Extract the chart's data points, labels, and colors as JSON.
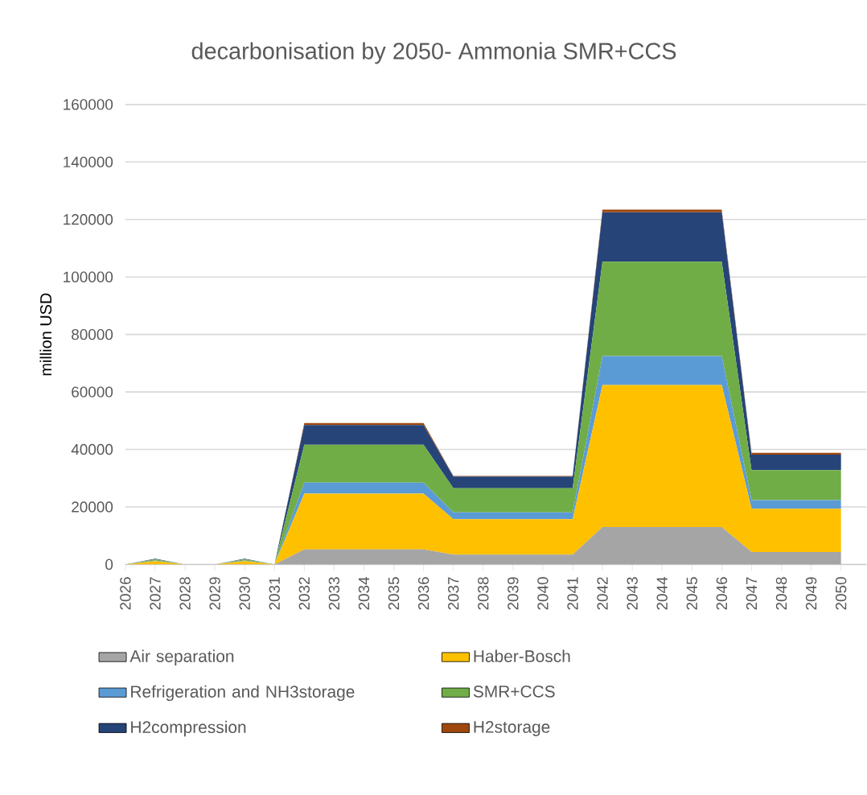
{
  "chart_data": {
    "type": "area",
    "title": "decarbonisation by 2050- Ammonia SMR+CCS",
    "ylabel": "million USD",
    "categories": [
      "2026",
      "2027",
      "2028",
      "2029",
      "2030",
      "2031",
      "2032",
      "2033",
      "2034",
      "2035",
      "2036",
      "2037",
      "2038",
      "2039",
      "2040",
      "2041",
      "2042",
      "2043",
      "2044",
      "2045",
      "2046",
      "2047",
      "2048",
      "2049",
      "2050"
    ],
    "stacked": true,
    "grid": "y",
    "legend": "bottom",
    "ylim": [
      0,
      160000
    ],
    "yticks": [
      0,
      20000,
      40000,
      60000,
      80000,
      100000,
      120000,
      140000,
      160000
    ],
    "series": [
      {
        "name": "Air separation",
        "color": "#a5a5a5",
        "values": [
          0,
          0,
          0,
          0,
          0,
          0,
          5200,
          5200,
          5200,
          5200,
          5200,
          3400,
          3400,
          3400,
          3400,
          3400,
          13000,
          13000,
          13000,
          13000,
          13000,
          4300,
          4300,
          4300,
          4300
        ]
      },
      {
        "name": "Haber-Bosch",
        "color": "#ffc000",
        "values": [
          0,
          1200,
          0,
          0,
          1200,
          0,
          19400,
          19400,
          19400,
          19400,
          19400,
          12300,
          12300,
          12300,
          12300,
          12300,
          49400,
          49400,
          49400,
          49400,
          49400,
          15100,
          15100,
          15100,
          15100
        ]
      },
      {
        "name": "Refrigeration and NH3storage",
        "color": "#5b9bd5",
        "values": [
          0,
          200,
          0,
          0,
          200,
          0,
          3900,
          3900,
          3900,
          3900,
          3900,
          2400,
          2400,
          2400,
          2400,
          2400,
          10100,
          10100,
          10100,
          10100,
          10100,
          3000,
          3000,
          3000,
          3000
        ]
      },
      {
        "name": "SMR+CCS",
        "color": "#70ad47",
        "values": [
          0,
          400,
          0,
          0,
          400,
          0,
          13100,
          13100,
          13100,
          13100,
          13100,
          8400,
          8400,
          8400,
          8400,
          8400,
          32800,
          32800,
          32800,
          32800,
          32800,
          10400,
          10400,
          10400,
          10400
        ]
      },
      {
        "name": "H2compression",
        "color": "#264478",
        "values": [
          0,
          200,
          0,
          0,
          200,
          0,
          6900,
          6900,
          6900,
          6900,
          6900,
          4100,
          4100,
          4100,
          4100,
          4100,
          17200,
          17200,
          17200,
          17200,
          17200,
          5400,
          5400,
          5400,
          5400
        ]
      },
      {
        "name": "H2storage",
        "color": "#9e480e",
        "values": [
          0,
          0,
          0,
          0,
          0,
          0,
          700,
          700,
          700,
          700,
          700,
          200,
          200,
          200,
          200,
          200,
          900,
          900,
          900,
          900,
          900,
          600,
          600,
          600,
          600
        ]
      }
    ]
  }
}
